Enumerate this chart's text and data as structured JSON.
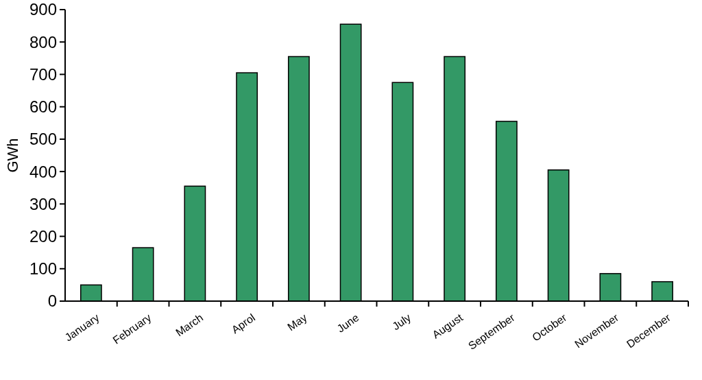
{
  "chart_data": {
    "type": "bar",
    "ylabel": "GWh",
    "categories": [
      "January",
      "February",
      "March",
      "Aprol",
      "May",
      "June",
      "July",
      "August",
      "September",
      "October",
      "November",
      "December"
    ],
    "values": [
      50,
      165,
      355,
      705,
      755,
      855,
      675,
      755,
      555,
      405,
      85,
      60
    ],
    "color": "#339966",
    "ylim": [
      0,
      900
    ],
    "yticks": [
      0,
      100,
      200,
      300,
      400,
      500,
      600,
      700,
      800,
      900
    ],
    "grid": false
  }
}
